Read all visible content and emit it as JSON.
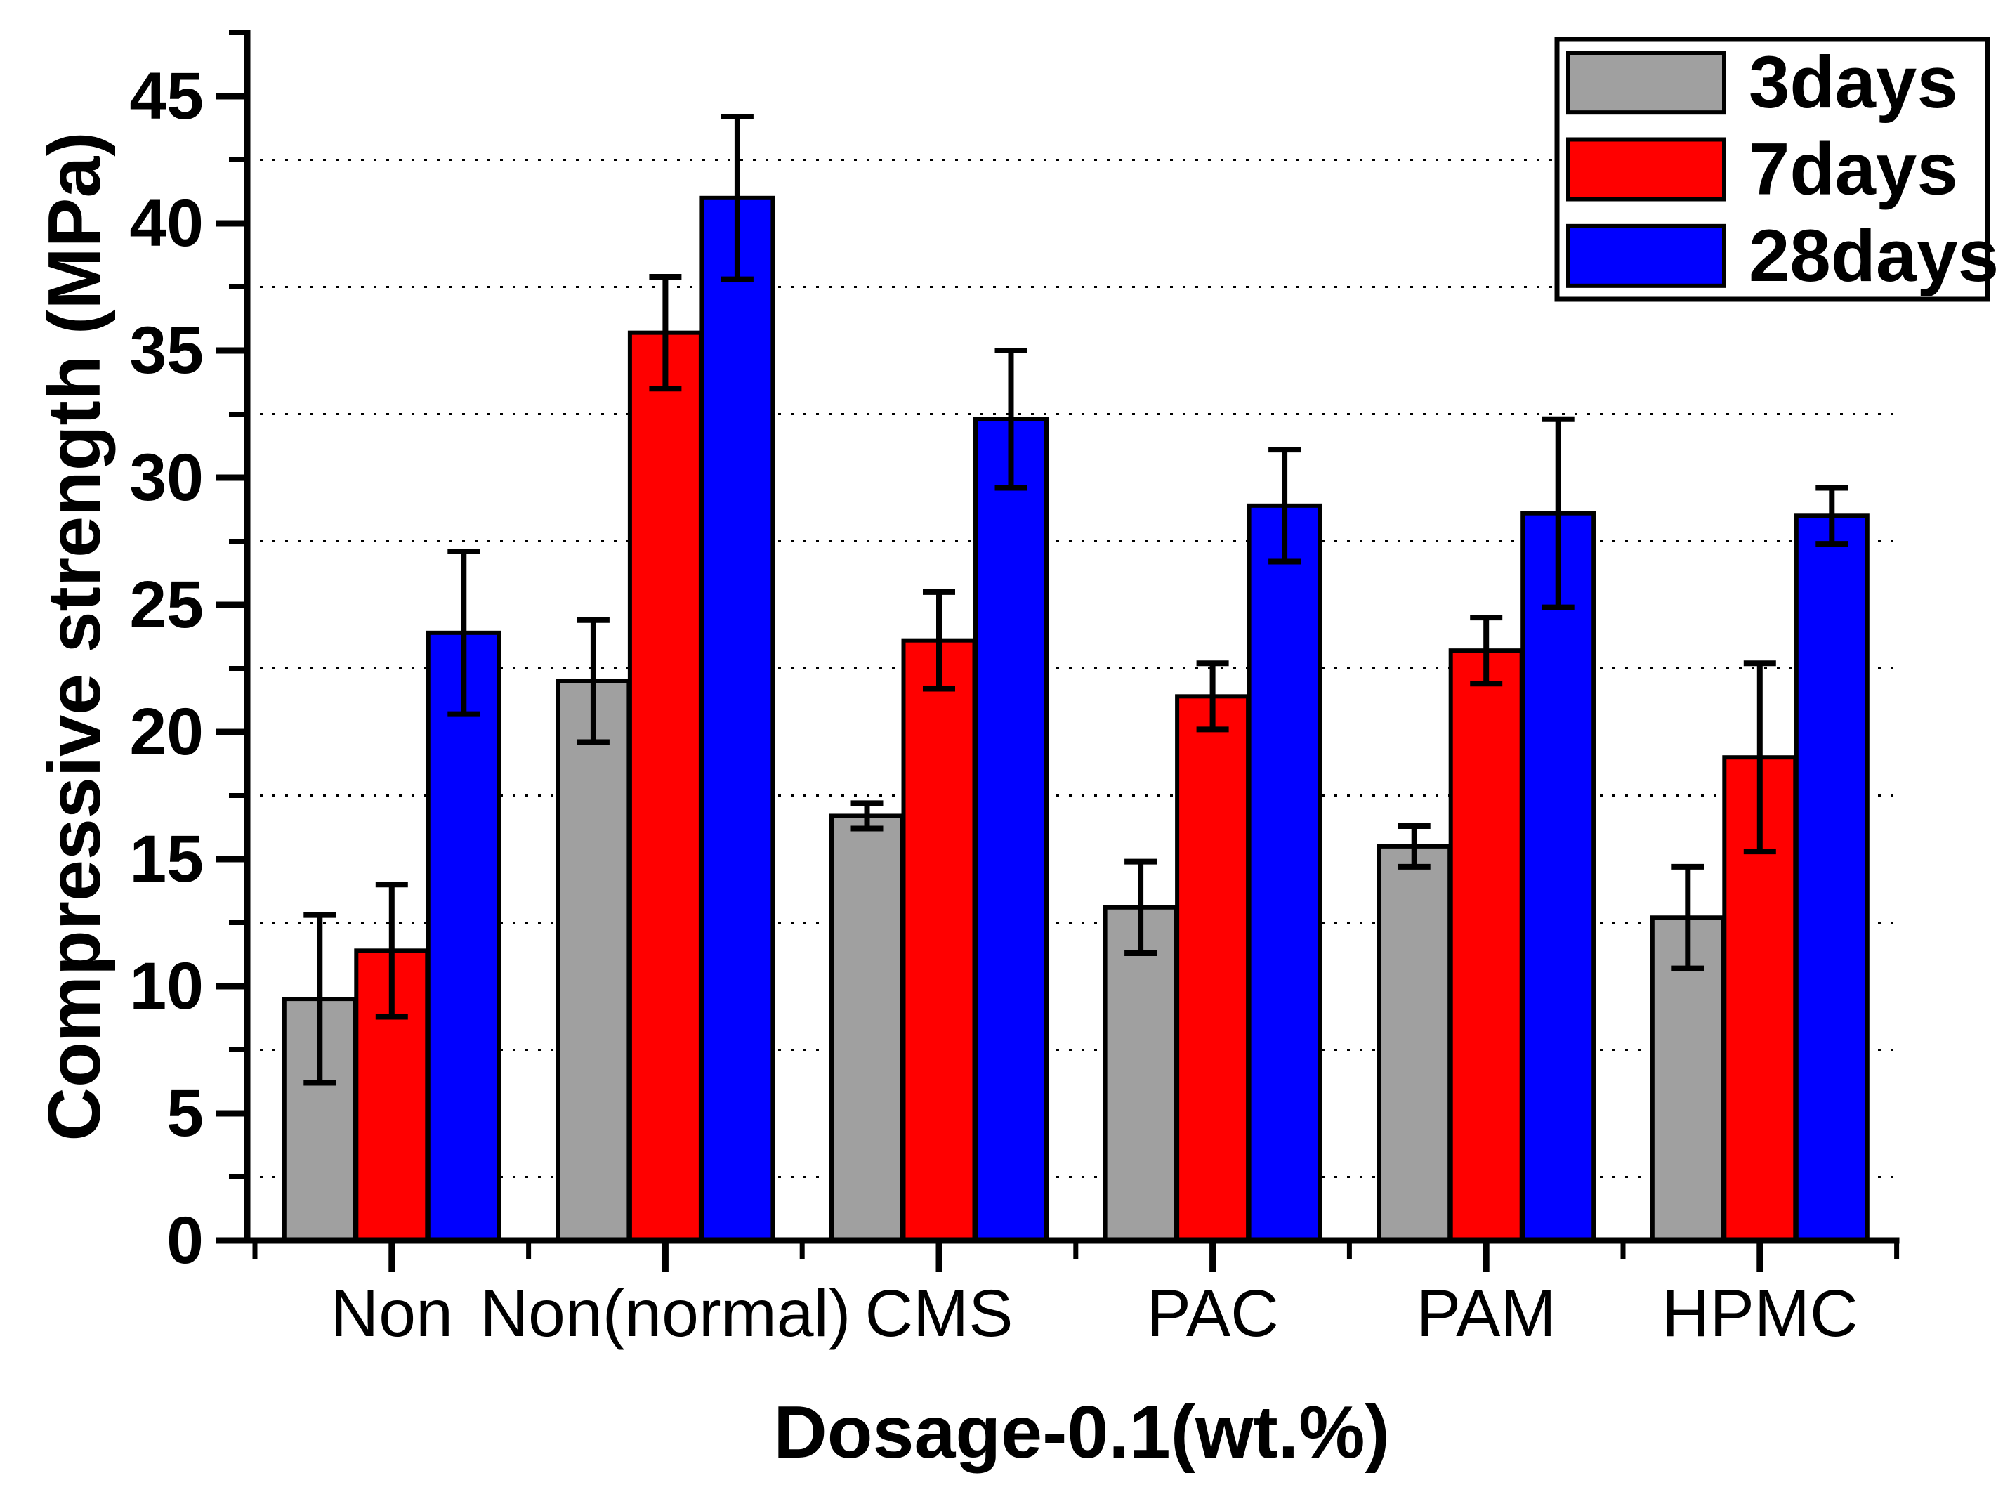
{
  "chart_data": {
    "type": "bar",
    "title": "",
    "xlabel": "Dosage-0.1(wt.%)",
    "ylabel": "Compressive strength (MPa)",
    "categories": [
      "Non",
      "Non(normal)",
      "CMS",
      "PAC",
      "PAM",
      "HPMC"
    ],
    "series": [
      {
        "name": "3days",
        "color": "#A0A0A0",
        "values": [
          9.5,
          22.0,
          16.7,
          13.1,
          15.5,
          12.7
        ],
        "errors": [
          3.3,
          2.4,
          0.5,
          1.8,
          0.8,
          2.0
        ]
      },
      {
        "name": "7days",
        "color": "#FF0000",
        "values": [
          11.4,
          35.7,
          23.6,
          21.4,
          23.2,
          19.0
        ],
        "errors": [
          2.6,
          2.2,
          1.9,
          1.3,
          1.3,
          3.7
        ]
      },
      {
        "name": "28days",
        "color": "#0000FF",
        "values": [
          23.9,
          41.0,
          32.3,
          28.9,
          28.6,
          28.5
        ],
        "errors": [
          3.2,
          3.2,
          2.7,
          2.2,
          3.7,
          1.1
        ]
      }
    ],
    "ylim": [
      0,
      47.5
    ],
    "yticks_major": [
      0,
      5,
      10,
      15,
      20,
      25,
      30,
      35,
      40,
      45
    ],
    "ytick_minor_step": 2.5,
    "grid": "horizontal-dashed-at-minor-ticks",
    "grid_color": "#000000",
    "axis_color": "#000000",
    "error_bar_color": "#000000",
    "bar_border_color": "#000000",
    "legend_position": "top-right",
    "legend_labels": [
      "3days",
      "7days",
      "28days"
    ]
  }
}
